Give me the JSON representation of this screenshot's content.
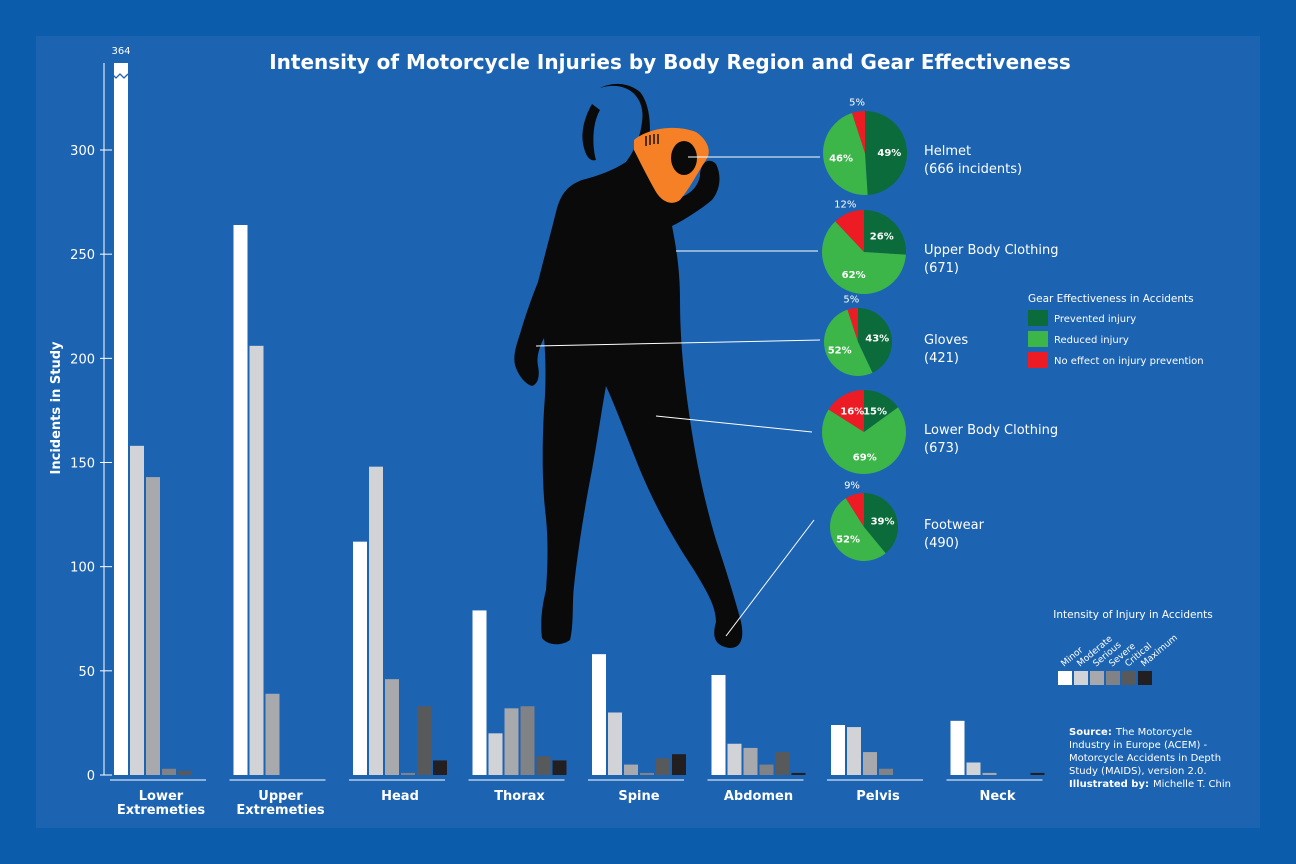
{
  "chart_data": {
    "type": "bar",
    "title": "Intensity of Motorcycle Injuries by Body Region and Gear Effectiveness",
    "ylabel": "Incidents in Study",
    "ylim": [
      0,
      340
    ],
    "yticks": [
      0,
      50,
      100,
      150,
      200,
      250,
      300
    ],
    "broken_bar_label": "364",
    "categories": [
      [
        "Lower",
        "Extremeties"
      ],
      [
        "Upper",
        "Extremeties"
      ],
      [
        "Head"
      ],
      [
        "Thorax"
      ],
      [
        "Spine"
      ],
      [
        "Abdomen"
      ],
      [
        "Pelvis"
      ],
      [
        "Neck"
      ]
    ],
    "series": [
      {
        "name": "Minor",
        "color": "#ffffff",
        "values": [
          364,
          264,
          112,
          79,
          58,
          48,
          24,
          26
        ]
      },
      {
        "name": "Moderate",
        "color": "#d2d3d6",
        "values": [
          158,
          206,
          148,
          20,
          30,
          15,
          23,
          6
        ]
      },
      {
        "name": "Serious",
        "color": "#a7a9ac",
        "values": [
          143,
          39,
          46,
          32,
          5,
          13,
          11,
          1
        ]
      },
      {
        "name": "Severe",
        "color": "#808285",
        "values": [
          3,
          0,
          1,
          33,
          1,
          5,
          3,
          0
        ]
      },
      {
        "name": "Critical",
        "color": "#58595b",
        "values": [
          2,
          0,
          33,
          9,
          8,
          11,
          0,
          0
        ]
      },
      {
        "name": "Maximum",
        "color": "#231f20",
        "values": [
          0,
          0,
          7,
          7,
          10,
          1,
          0,
          1
        ]
      }
    ],
    "legend_title": "Intensity of Injury in Accidents",
    "legend_position": "bottom-right",
    "grid": false
  },
  "gear_chart": {
    "type": "pie",
    "legend_title": "Gear Effectiveness in Accidents",
    "labels": [
      "Prevented injury",
      "Reduced injury",
      "No effect on injury prevention"
    ],
    "colors": [
      "#0b6b3a",
      "#3cb549",
      "#ed1c24"
    ],
    "items": [
      {
        "name": "Helmet",
        "count": "(666 incidents)",
        "values": [
          49,
          46,
          5
        ]
      },
      {
        "name": "Upper Body Clothing",
        "count": "(671)",
        "values": [
          26,
          62,
          12
        ]
      },
      {
        "name": "Gloves",
        "count": "(421)",
        "values": [
          43,
          52,
          5
        ]
      },
      {
        "name": "Lower Body Clothing",
        "count": "(673)",
        "values": [
          15,
          69,
          16
        ]
      },
      {
        "name": "Footwear",
        "count": "(490)",
        "values": [
          39,
          52,
          9
        ]
      }
    ]
  },
  "source": {
    "label": "Source:",
    "lines": [
      "The Motorcycle",
      "Industry in Europe (ACEM)  -",
      "Motorcycle Accidents in Depth",
      "Study (MAIDS), version 2.0."
    ],
    "illustrated_label": "Illustrated by:",
    "illustrator": "Michelle T. Chin"
  },
  "colors": {
    "background": "#0b5dab",
    "panel": "#1c63b2",
    "helmet": "#f58025"
  }
}
